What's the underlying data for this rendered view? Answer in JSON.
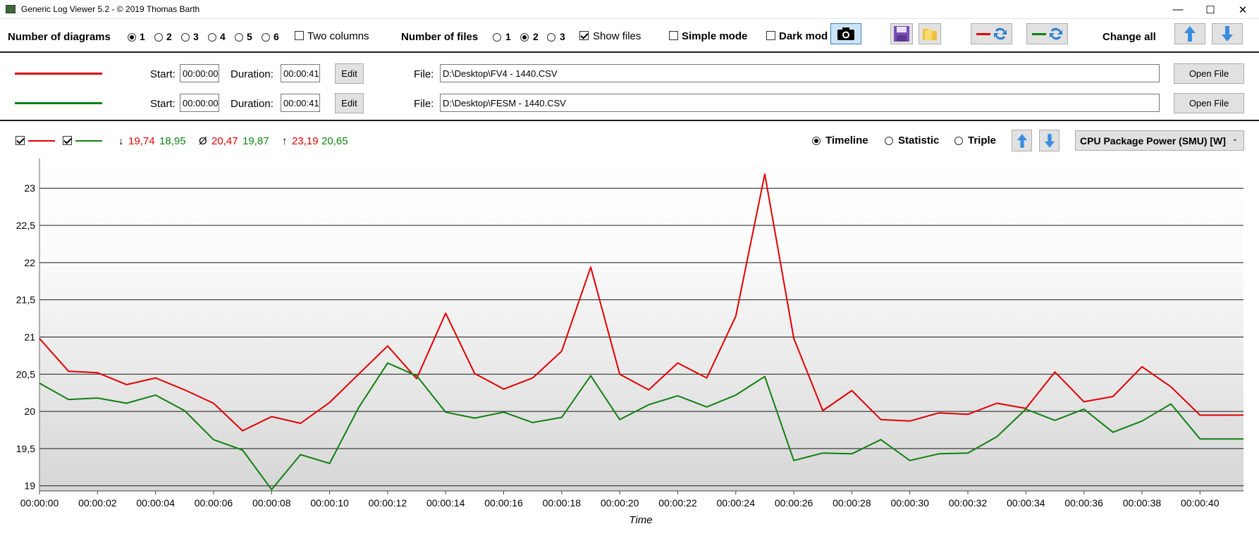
{
  "window": {
    "title": "Generic Log Viewer 5.2 - © 2019 Thomas Barth",
    "minimize": "—",
    "maximize": "☐",
    "close": "✕"
  },
  "toolbar": {
    "diagrams_label": "Number of diagrams",
    "diagram_options": [
      "1",
      "2",
      "3",
      "4",
      "5",
      "6"
    ],
    "diagram_selected": "1",
    "two_columns": "Two columns",
    "files_label": "Number of files",
    "file_options": [
      "1",
      "2",
      "3"
    ],
    "file_selected": "2",
    "show_files": "Show files",
    "simple_mode": "Simple mode",
    "dark_mode": "Dark mod",
    "change_all": "Change all"
  },
  "files": [
    {
      "color": "#e00000",
      "start_label": "Start:",
      "start": "00:00:00",
      "duration_label": "Duration:",
      "duration": "00:00:41",
      "edit": "Edit",
      "file_label": "File:",
      "path": "D:\\Desktop\\FV4 - 1440.CSV",
      "open": "Open File"
    },
    {
      "color": "#108010",
      "start_label": "Start:",
      "start": "00:00:00",
      "duration_label": "Duration:",
      "duration": "00:00:41",
      "edit": "Edit",
      "file_label": "File:",
      "path": "D:\\Desktop\\FESM - 1440.CSV",
      "open": "Open File"
    }
  ],
  "stats": {
    "min_symbol": "↓",
    "min_red": "19,74",
    "min_green": "18,95",
    "avg_symbol": "Ø",
    "avg_red": "20,47",
    "avg_green": "19,87",
    "max_symbol": "↑",
    "max_red": "23,19",
    "max_green": "20,65"
  },
  "view_modes": [
    "Timeline",
    "Statistic",
    "Triple"
  ],
  "view_selected": "Timeline",
  "sensor": "CPU Package Power (SMU) [W]",
  "chart_data": {
    "type": "line",
    "xlabel": "Time",
    "ylabel": "",
    "ylim": [
      18.95,
      23.4
    ],
    "yticks": [
      19,
      19.5,
      20,
      20.5,
      21,
      21.5,
      22,
      22.5,
      23
    ],
    "ytick_labels": [
      "19",
      "19,5",
      "20",
      "20,5",
      "21",
      "21,5",
      "22",
      "22,5",
      "23"
    ],
    "xticks": [
      "00:00:00",
      "00:00:02",
      "00:00:04",
      "00:00:06",
      "00:00:08",
      "00:00:10",
      "00:00:12",
      "00:00:14",
      "00:00:16",
      "00:00:18",
      "00:00:20",
      "00:00:22",
      "00:00:24",
      "00:00:26",
      "00:00:28",
      "00:00:30",
      "00:00:32",
      "00:00:34",
      "00:00:36",
      "00:00:38",
      "00:00:40"
    ],
    "xmax": 41.5,
    "series": [
      {
        "color": "#e00000",
        "x": [
          0,
          1,
          2,
          3,
          4,
          5,
          6,
          7,
          8,
          9,
          10,
          11,
          12,
          13,
          14,
          15,
          16,
          17,
          18,
          19,
          20,
          21,
          22,
          23,
          24,
          25,
          26,
          27,
          28,
          29,
          30,
          31,
          32,
          33,
          34,
          35,
          36,
          37,
          38,
          39,
          40,
          41.5
        ],
        "values": [
          20.98,
          20.54,
          20.52,
          20.36,
          20.45,
          20.29,
          20.11,
          19.74,
          19.93,
          19.84,
          20.12,
          20.5,
          20.88,
          20.44,
          21.32,
          20.51,
          20.3,
          20.45,
          20.81,
          21.94,
          20.5,
          20.29,
          20.65,
          20.45,
          21.28,
          23.19,
          20.98,
          20.01,
          20.28,
          19.89,
          19.87,
          19.98,
          19.96,
          20.11,
          20.04,
          20.53,
          20.13,
          20.2,
          20.6,
          20.33,
          19.95,
          19.95
        ]
      },
      {
        "color": "#108010",
        "x": [
          0,
          1,
          2,
          3,
          4,
          5,
          6,
          7,
          8,
          9,
          10,
          11,
          12,
          13,
          14,
          15,
          16,
          17,
          18,
          19,
          20,
          21,
          22,
          23,
          24,
          25,
          26,
          27,
          28,
          29,
          30,
          31,
          32,
          33,
          34,
          35,
          36,
          37,
          38,
          39,
          40,
          41.5
        ],
        "values": [
          20.38,
          20.16,
          20.18,
          20.11,
          20.22,
          20.01,
          19.62,
          19.48,
          18.95,
          19.42,
          19.3,
          20.05,
          20.65,
          20.48,
          19.99,
          19.91,
          19.99,
          19.85,
          19.92,
          20.48,
          19.89,
          20.09,
          20.21,
          20.06,
          20.22,
          20.47,
          19.34,
          19.44,
          19.43,
          19.62,
          19.34,
          19.43,
          19.44,
          19.66,
          20.03,
          19.88,
          20.03,
          19.72,
          19.87,
          20.1,
          19.63,
          19.63
        ]
      }
    ]
  }
}
